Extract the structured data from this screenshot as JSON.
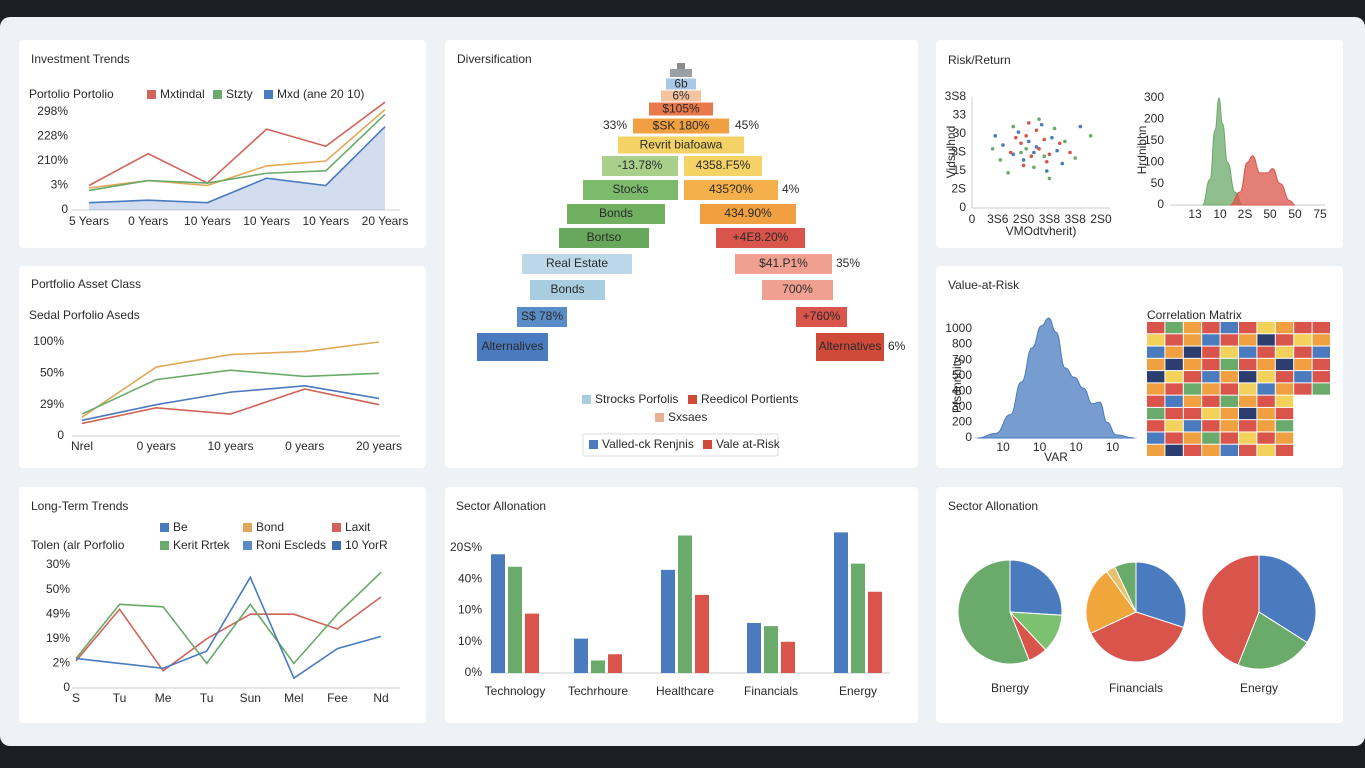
{
  "chart_data": [
    {
      "type": "line",
      "title": "Investment Trends",
      "subtitle": "Portolio Portolio",
      "legend": [
        {
          "name": "Mxtindal",
          "color": "#d0645a"
        },
        {
          "name": "Stzty",
          "color": "#6aaa6a"
        },
        {
          "name": "Mxd (ane 20 10)",
          "color": "#4a7bbf"
        }
      ],
      "categories": [
        "5 Years",
        "0 Years",
        "10 Years",
        "10 Years",
        "10 Years",
        "20 Years"
      ],
      "ylabels": [
        "0",
        "3%",
        "210%",
        "228%",
        "298%"
      ],
      "ylim": [
        0,
        4
      ],
      "series": [
        {
          "color": "#d0645a",
          "values": [
            1.0,
            2.3,
            1.1,
            3.3,
            2.6,
            4.4
          ]
        },
        {
          "color": "#e0a85a",
          "values": [
            0.9,
            1.2,
            1.0,
            1.8,
            2.0,
            4.1
          ]
        },
        {
          "color": "#6aaa6a",
          "values": [
            0.8,
            1.2,
            1.1,
            1.5,
            1.6,
            3.9
          ]
        },
        {
          "color": "#4a7bbf",
          "area": true,
          "values": [
            0.3,
            0.4,
            0.3,
            1.3,
            1.0,
            3.4
          ]
        }
      ]
    },
    {
      "type": "butterfly",
      "title": "Diversification",
      "rows": [
        {
          "color": "#8a8a8a"
        },
        {
          "color": "#9aa0a6"
        },
        {
          "text": "6b",
          "color": "#a9c8e6"
        },
        {
          "text": "6%",
          "color": "#f3c3a0"
        },
        {
          "text": "$105%",
          "color": "#e9784a"
        },
        {
          "text": "$SK 180%",
          "color": "#f0a040",
          "left_note": "33%",
          "right_note": "45%"
        },
        {
          "text": "Revrit biafoawa",
          "color": "#f5d266"
        },
        {
          "left": "-13.78%",
          "left_color": "#a8d08a",
          "right": "4358.F5%",
          "right_color": "#f5d266"
        },
        {
          "left": "Stocks",
          "left_color": "#7cbb6c",
          "right": "435?0%",
          "right_color": "#f4b04a",
          "right_note": "4%"
        },
        {
          "left": "Bonds",
          "left_color": "#70b060",
          "right": "434.90%",
          "right_color": "#f0a040"
        },
        {
          "left": "Bortso",
          "left_color": "#68a85c",
          "right": "+4E8.20%",
          "right_color": "#d9544a"
        },
        {
          "left": "Real Estate",
          "left_color": "#bcd8e8",
          "right": "$41.P1%",
          "right_color": "#f0a090",
          "right_note": "35%"
        },
        {
          "left": "Bonds",
          "left_color": "#a9cde0",
          "right": "700%",
          "right_color": "#f0a090"
        },
        {
          "left": "S$ 78%",
          "left_color": "#5a8cc8",
          "right": "+760%",
          "right_color": "#d9544a"
        },
        {
          "left": "Alternalives",
          "left_color": "#4a7bbf",
          "right": "Alternatives",
          "right_color": "#d04a3a",
          "right_note": "6%"
        }
      ],
      "legend": [
        {
          "name": "Strocks Porfolis",
          "color": "#a9cde0"
        },
        {
          "name": "Reedicol Portients",
          "color": "#d04a3a"
        },
        {
          "name": "Sxsaes",
          "color": "#e8b090"
        }
      ],
      "legend2": [
        {
          "name": "Valled-ck Renjnis",
          "color": "#4a7bbf"
        },
        {
          "name": "Vale at-Risk",
          "color": "#d04a3a"
        }
      ]
    },
    {
      "type": "scatter",
      "title": "Risk/Return",
      "x_label": "VMOdtvherit)",
      "y_label": "Vidsulhnd",
      "xlabels": [
        "0",
        "3S6",
        "2S0",
        "3S8",
        "3S8",
        "2S0"
      ],
      "ylabels": [
        "0",
        "2S",
        "15",
        "3S",
        "30",
        "33",
        "3S8"
      ],
      "xlim": [
        0,
        5.35
      ],
      "ylim": [
        0,
        6
      ],
      "series": [
        {
          "color": "#4a7bbf",
          "x": [
            1.2,
            1.8,
            2.0,
            2.4,
            2.7,
            3.1,
            3.5,
            1.6,
            2.2,
            2.9,
            0.9,
            4.2,
            2.5,
            3.3
          ],
          "values": [
            3.4,
            4.1,
            2.6,
            3.0,
            4.5,
            3.8,
            2.4,
            2.9,
            3.6,
            2.0,
            3.9,
            4.4,
            3.3,
            3.1
          ]
        },
        {
          "color": "#d9544a",
          "x": [
            1.5,
            1.9,
            2.1,
            2.3,
            2.6,
            2.8,
            3.0,
            3.4,
            2.0,
            2.5,
            1.7,
            3.8,
            2.2,
            2.9
          ],
          "values": [
            3.0,
            3.5,
            3.9,
            2.8,
            3.2,
            3.7,
            2.9,
            3.5,
            2.3,
            4.2,
            3.8,
            3.0,
            4.6,
            2.5
          ]
        },
        {
          "color": "#6aaa6a",
          "x": [
            1.1,
            1.6,
            2.1,
            2.4,
            2.8,
            3.2,
            3.6,
            4.0,
            1.4,
            2.6,
            3.0,
            4.6,
            1.9,
            0.8
          ],
          "values": [
            2.6,
            4.4,
            3.2,
            2.2,
            2.8,
            4.3,
            3.6,
            2.7,
            1.9,
            4.8,
            1.6,
            3.9,
            3.0,
            3.2
          ]
        }
      ]
    },
    {
      "type": "density",
      "y_label": "Hrdnibhn",
      "xlabels": [
        "13",
        "10",
        "2S",
        "50",
        "50",
        "75"
      ],
      "ylabels": [
        "0",
        "50",
        "100",
        "150",
        "200",
        "300"
      ],
      "xlim": [
        -1,
        5.2
      ],
      "ylim": [
        0,
        5
      ],
      "series": [
        {
          "color": "#6aaa6a",
          "x": [
            0.3,
            0.6,
            0.8,
            0.96,
            1.1,
            1.3,
            1.6,
            1.9
          ],
          "values": [
            0,
            1.2,
            3.5,
            5.0,
            3.8,
            2.0,
            0.6,
            0
          ]
        },
        {
          "color": "#d9544a",
          "x": [
            1.4,
            1.8,
            2.1,
            2.3,
            2.6,
            2.9,
            3.1,
            3.4,
            3.8,
            4.0
          ],
          "values": [
            0,
            0.6,
            2.0,
            2.3,
            1.5,
            1.5,
            1.7,
            1.0,
            0.2,
            0
          ]
        }
      ]
    },
    {
      "type": "line",
      "title": "Portfolio Asset Class",
      "subtitle": "Sedal Porfolio Aseds",
      "categories": [
        "Nrel",
        "0 years",
        "10 years",
        "0 years",
        "20 years"
      ],
      "ylabels": [
        "0",
        "29%",
        "50%",
        "100%"
      ],
      "ylim": [
        0,
        3
      ],
      "series": [
        {
          "color": "#e0a85a",
          "values": [
            0.6,
            2.2,
            2.6,
            2.7,
            3.0
          ]
        },
        {
          "color": "#6aaa6a",
          "values": [
            0.7,
            1.8,
            2.1,
            1.9,
            2.0
          ]
        },
        {
          "color": "#4a7bbf",
          "values": [
            0.5,
            1.0,
            1.4,
            1.6,
            1.2
          ]
        },
        {
          "color": "#d0645a",
          "values": [
            0.4,
            0.9,
            0.7,
            1.5,
            1.0
          ]
        }
      ]
    },
    {
      "type": "density",
      "title": "Value-at-Risk",
      "x_label": "VAR",
      "y_label": "Pfsdnnhity",
      "xlabels": [
        "10",
        "10",
        "10",
        "10"
      ],
      "ylabels": [
        "0",
        "200",
        "300",
        "400",
        "500",
        "700",
        "800",
        "1000"
      ],
      "xlim": [
        -0.77,
        3.67
      ],
      "ylim": [
        0,
        7
      ],
      "series": [
        {
          "color": "#4a7bbf",
          "x": [
            -0.7,
            -0.2,
            0.2,
            0.5,
            0.8,
            1.05,
            1.25,
            1.45,
            1.7,
            1.95,
            2.2,
            2.45,
            2.65,
            2.85,
            3.1,
            3.6
          ],
          "values": [
            0,
            0.3,
            1.5,
            3.6,
            5.8,
            7.2,
            7.7,
            6.8,
            4.5,
            3.9,
            3.2,
            2.2,
            2.3,
            1.0,
            0.2,
            0
          ]
        }
      ]
    },
    {
      "type": "heatmap",
      "title": "Correlation Matrix",
      "zlim": [
        -1,
        1
      ],
      "colorscale": [
        "#2c3e70",
        "#4a7bbf",
        "#6aaa6a",
        "#f2d25a",
        "#f0a040",
        "#d9544a"
      ],
      "values": [
        [
          0.9,
          -0.3,
          0.5,
          0.7,
          -0.5,
          0.9,
          0.3,
          0.6,
          0.9,
          0.7
        ],
        [
          0.2,
          0.9,
          0.6,
          -0.4,
          0.8,
          0.5,
          -0.7,
          0.9,
          0.2,
          0.6
        ],
        [
          -0.4,
          0.5,
          -0.9,
          0.8,
          0.3,
          -0.5,
          0.9,
          0.1,
          0.7,
          -0.6
        ],
        [
          0.6,
          -0.7,
          0.4,
          0.9,
          -0.3,
          0.7,
          0.5,
          -0.9,
          0.4,
          0.8
        ],
        [
          -0.9,
          0.3,
          0.8,
          -0.5,
          0.6,
          -0.8,
          0.2,
          0.7,
          -0.4,
          0.9
        ],
        [
          0.5,
          0.8,
          -0.3,
          0.4,
          0.9,
          0.1,
          -0.6,
          0.5,
          0.8,
          -0.2
        ],
        [
          0.8,
          -0.5,
          0.6,
          0.9,
          -0.2,
          0.5,
          0.8,
          0.3,
          null,
          null
        ],
        [
          -0.3,
          0.7,
          0.9,
          0.2,
          0.6,
          -0.7,
          0.4,
          0.9,
          null,
          null
        ],
        [
          0.7,
          0.2,
          -0.6,
          0.8,
          0.5,
          0.9,
          0.6,
          -0.1,
          null,
          null
        ],
        [
          -0.6,
          0.9,
          0.4,
          -0.2,
          0.8,
          0.3,
          0.7,
          0.5,
          null,
          null
        ],
        [
          0.4,
          -0.8,
          0.7,
          0.6,
          -0.4,
          0.9,
          0.2,
          0.8,
          null,
          null
        ]
      ]
    },
    {
      "type": "line",
      "title": "Long-Term Trends",
      "subtitle": "Tolen (alr Porfolio",
      "legend": [
        {
          "name": "Be",
          "color": "#4a7bbf"
        },
        {
          "name": "Bond",
          "color": "#e0a85a"
        },
        {
          "name": "Laxit",
          "color": "#d0645a"
        },
        {
          "name": "Kerit Rrtek",
          "color": "#6aaa6a"
        },
        {
          "name": "Roni Escleds",
          "color": "#5a8cc8"
        },
        {
          "name": "10 YorR",
          "color": "#3f6fae"
        }
      ],
      "categories": [
        "S",
        "Tu",
        "Me",
        "Tu",
        "Sun",
        "Mel",
        "Fee",
        "Nd"
      ],
      "ylabels": [
        "0",
        "2%",
        "19%",
        "49%",
        "50%",
        "30%"
      ],
      "ylim": [
        0,
        5
      ],
      "series": [
        {
          "color": "#d0645a",
          "values": [
            1.1,
            3.2,
            0.7,
            2.0,
            3.0,
            3.0,
            2.4,
            3.7
          ]
        },
        {
          "color": "#6aaa6a",
          "values": [
            1.2,
            3.4,
            3.3,
            1.0,
            3.4,
            1.0,
            3.0,
            4.7
          ]
        },
        {
          "color": "#4a7bbf",
          "values": [
            1.2,
            1.0,
            0.8,
            1.5,
            4.5,
            0.4,
            1.6,
            2.1
          ]
        }
      ]
    },
    {
      "type": "bar",
      "title": "Sector Allonation",
      "categories": [
        "Technology",
        "Techrhoure",
        "Healthcare",
        "Financials",
        "Energy"
      ],
      "ylabels": [
        "0%",
        "10%",
        "10%",
        "40%",
        "20S%"
      ],
      "ylim": [
        0,
        4.8
      ],
      "series": [
        {
          "color": "#4a7bbf",
          "values": [
            3.8,
            1.1,
            3.3,
            1.6,
            4.5
          ]
        },
        {
          "color": "#6aaa6a",
          "values": [
            3.4,
            0.4,
            4.4,
            1.5,
            3.5
          ]
        },
        {
          "color": "#d9544a",
          "values": [
            1.9,
            0.6,
            2.5,
            1.0,
            2.6
          ]
        }
      ]
    },
    {
      "type": "pie",
      "title": "Sector Allonation",
      "pies": [
        {
          "label": "Bnergy",
          "values": [
            26,
            12,
            6,
            56
          ],
          "colors": [
            "#4a7bbf",
            "#7cc070",
            "#d9544a",
            "#6aaa6a"
          ]
        },
        {
          "label": "Financials",
          "values": [
            30,
            38,
            22,
            3,
            7
          ],
          "colors": [
            "#4a7bbf",
            "#d9544a",
            "#f0a63a",
            "#e8c070",
            "#6aaa6a"
          ]
        },
        {
          "label": "Energy",
          "values": [
            34,
            22,
            44
          ],
          "colors": [
            "#4a7bbf",
            "#6aaa6a",
            "#d9544a"
          ]
        }
      ]
    }
  ]
}
